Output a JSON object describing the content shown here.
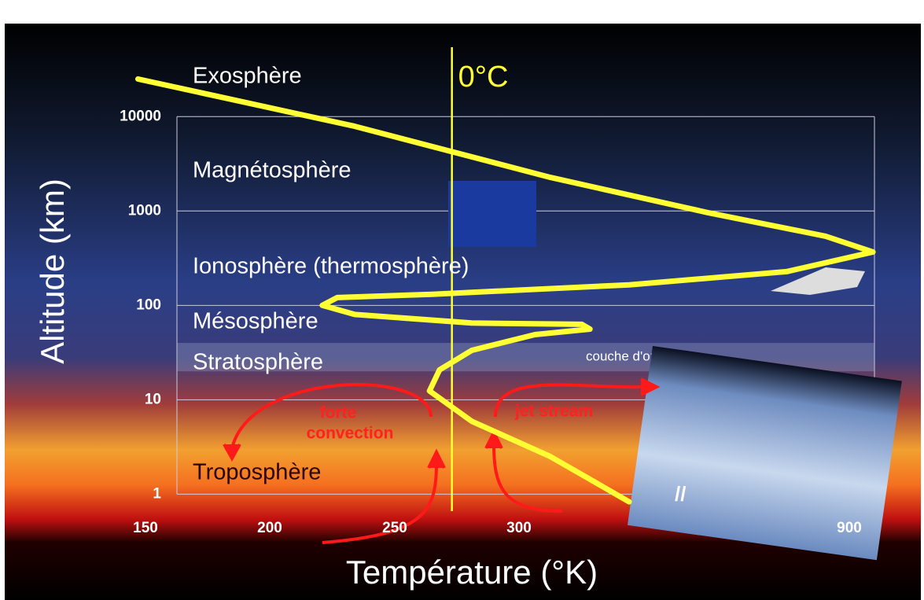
{
  "chart_data": {
    "type": "line",
    "x_label": "Température (°K)",
    "y_label": "Altitude (km)",
    "y_scale": "log",
    "grid": true,
    "xlim": [
      130,
      960
    ],
    "ylim": [
      0.8,
      30000
    ],
    "xticks": [
      150,
      200,
      250,
      300,
      900
    ],
    "yticks": [
      1,
      10,
      100,
      1000,
      10000
    ],
    "zero_celsius": {
      "label": "0°C",
      "value": 273
    },
    "ozone_layer": {
      "label": "couche d'ozone",
      "range": [
        20,
        40
      ]
    },
    "layers": [
      "Exosphère",
      "Magnétosphère",
      "Ionosphère (thermosphère)",
      "Mésosphère",
      "Stratosphère",
      "Troposphère"
    ],
    "annotations": [
      "forte",
      "convection",
      "jet stream"
    ],
    "series": [
      {
        "color": "#ffff33",
        "x": [
          500,
          357,
          281,
          264,
          268,
          281,
          329,
          429,
          414,
          281,
          234,
          221,
          227,
          265,
          500,
          786,
          943,
          857,
          643,
          357,
          234,
          147
        ],
        "values": [
          0.83,
          2.5,
          5.9,
          12.4,
          20.7,
          33.4,
          49,
          56,
          63,
          65,
          80,
          100,
          121,
          131,
          165,
          228,
          368,
          540,
          960,
          2270,
          7900,
          25000
        ]
      }
    ]
  }
}
